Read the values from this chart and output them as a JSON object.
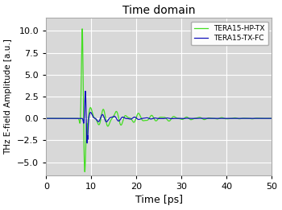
{
  "title": "Time domain",
  "xlabel": "Time [ps]",
  "ylabel": "THz E-field Amplitude [a.u.]",
  "xlim": [
    0,
    50
  ],
  "ylim": [
    -6.5,
    11.5
  ],
  "yticks": [
    -5.0,
    -2.5,
    0.0,
    2.5,
    5.0,
    7.5,
    10.0
  ],
  "xticks": [
    0,
    10,
    20,
    30,
    40,
    50
  ],
  "legend": [
    "TERA15-HP-TX",
    "TERA15-TX-FC"
  ],
  "line_colors": [
    "#44dd22",
    "#1111bb"
  ],
  "plot_bg_color": "#d8d8d8",
  "fig_bg_color": "#ffffff",
  "grid_color": "#ffffff",
  "n_points": 3000,
  "t_start": 0,
  "t_end": 50
}
